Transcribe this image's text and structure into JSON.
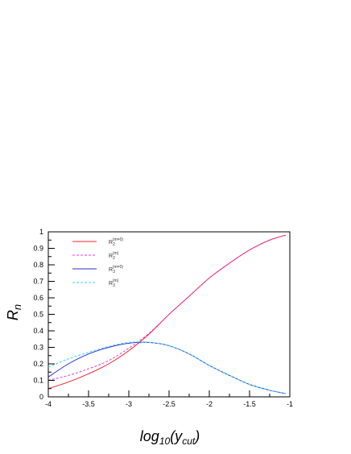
{
  "chart_data": {
    "type": "line",
    "xlabel": "log10(ycut)",
    "ylabel": "Rn",
    "xlim": [
      -4,
      -1
    ],
    "ylim": [
      0,
      1
    ],
    "x_ticks": [
      -4,
      -3.5,
      -3,
      -2.5,
      -2,
      -1.5,
      -1
    ],
    "x_tick_labels": [
      "-4",
      "-3.5",
      "-3",
      "-2.5",
      "-2",
      "-1.5",
      "-1"
    ],
    "y_ticks": [
      0,
      0.1,
      0.2,
      0.3,
      0.4,
      0.5,
      0.6,
      0.7,
      0.8,
      0.9,
      1
    ],
    "y_tick_labels": [
      "0",
      "0.1",
      "0.2",
      "0.3",
      "0.4",
      "0.5",
      "0.6",
      "0.7",
      "0.8",
      "0.9",
      "1"
    ],
    "grid": false,
    "legend_position": "top-left",
    "x": [
      -4,
      -3.75,
      -3.5,
      -3.25,
      -3,
      -2.75,
      -2.5,
      -2.25,
      -2,
      -1.75,
      -1.5,
      -1.25,
      -1.05
    ],
    "series": [
      {
        "name": "R2(m=0)",
        "color": "#e8242d",
        "dash": "solid",
        "values": [
          0.05,
          0.09,
          0.14,
          0.2,
          0.28,
          0.38,
          0.5,
          0.61,
          0.72,
          0.81,
          0.89,
          0.95,
          0.98
        ]
      },
      {
        "name": "R2(m)",
        "color": "#e040e0",
        "dash": "dashed",
        "values": [
          0.1,
          0.13,
          0.17,
          0.22,
          0.295,
          0.385,
          0.5,
          0.61,
          0.72,
          0.81,
          0.89,
          0.95,
          0.98
        ]
      },
      {
        "name": "R3(m=0)",
        "color": "#2b2bd6",
        "dash": "solid",
        "values": [
          0.12,
          0.2,
          0.26,
          0.3,
          0.325,
          0.33,
          0.31,
          0.26,
          0.19,
          0.13,
          0.075,
          0.04,
          0.02
        ]
      },
      {
        "name": "R3(m)",
        "color": "#40d6e6",
        "dash": "dashed",
        "values": [
          0.18,
          0.23,
          0.27,
          0.305,
          0.33,
          0.33,
          0.31,
          0.26,
          0.19,
          0.13,
          0.075,
          0.04,
          0.02
        ]
      }
    ]
  }
}
